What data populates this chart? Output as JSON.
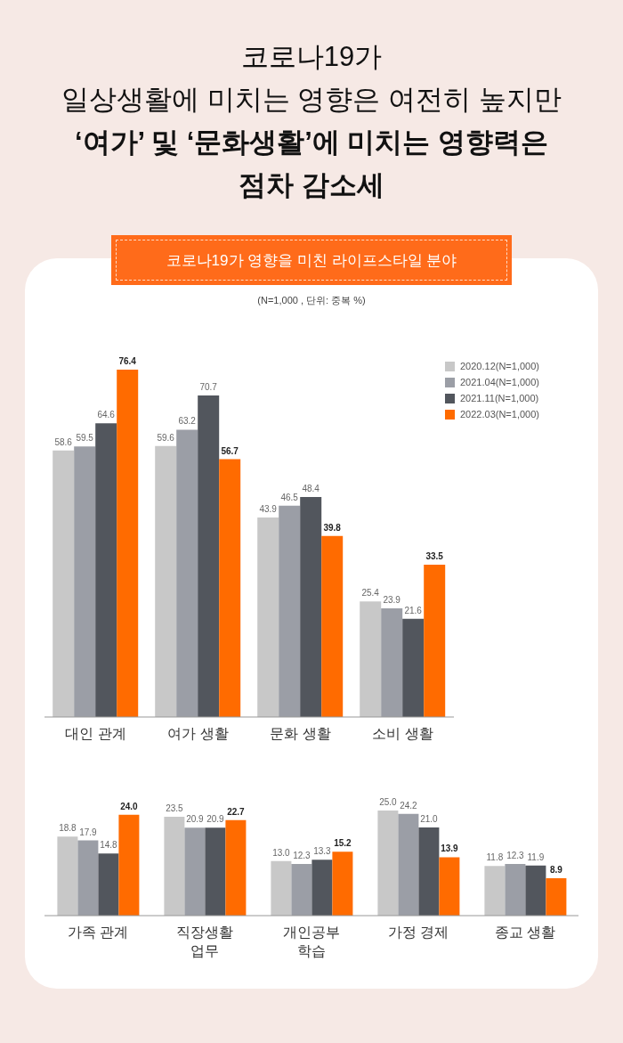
{
  "chart_data": [
    {
      "type": "bar",
      "title": "코로나19가\n일상생활에 미치는 영향은 여전히 높지만\n‘여가’ 및 ‘문화생활’에 미치는 영향력은\n점차 감소세",
      "subtitle": "코로나19가 영향을 미친 라이프스타일 분야",
      "annotations": [
        "(N=1,000 , 단위: 중복 %)"
      ],
      "categories": [
        "대인 관계",
        "여가 생활",
        "문화 생활",
        "소비 생활"
      ],
      "legend": "top right",
      "series": [
        {
          "name": "2020.12(N=1,000)",
          "color": "#c8c8c8",
          "values": [
            58.6,
            59.6,
            43.9,
            25.4
          ],
          "value_labels": [
            "58.6",
            "59.6",
            "43.9",
            "25.4"
          ]
        },
        {
          "name": "2021.04(N=1,000)",
          "color": "#9b9ea6",
          "values": [
            59.5,
            63.2,
            46.5,
            23.9
          ],
          "value_labels": [
            "59.5",
            "63.2",
            "46.5",
            "23.9"
          ]
        },
        {
          "name": "2021.11(N=1,000)",
          "color": "#52565d",
          "values": [
            64.6,
            70.7,
            48.4,
            21.6
          ],
          "value_labels": [
            "64.6",
            "70.7",
            "48.4",
            "21.6"
          ]
        },
        {
          "name": "2022.03(N=1,000)",
          "color": "#ff6b00",
          "values": [
            76.4,
            56.7,
            39.8,
            33.5
          ],
          "value_labels": [
            "76.4",
            "56.7",
            "39.8",
            "33.5"
          ]
        }
      ]
    },
    {
      "type": "bar",
      "categories": [
        "가족 관계",
        "직장생활\n업무",
        "개인공부\n학습",
        "가정 경제",
        "종교 생활"
      ],
      "series": [
        {
          "color": "#c8c8c8",
          "values": [
            18.8,
            23.5,
            13.0,
            25.0,
            11.8
          ],
          "value_labels": [
            "18.8",
            "23.5",
            "13.0",
            "25.0",
            "11.8"
          ]
        },
        {
          "color": "#9b9ea6",
          "values": [
            17.9,
            20.9,
            12.3,
            24.2,
            12.3
          ],
          "value_labels": [
            "17.9",
            "20.9",
            "12.3",
            "24.2",
            "12.3"
          ]
        },
        {
          "color": "#52565d",
          "values": [
            14.8,
            20.9,
            13.3,
            21.0,
            11.9
          ],
          "value_labels": [
            "14.8",
            "20.9",
            "13.3",
            "21.0",
            "11.9"
          ]
        },
        {
          "color": "#ff6b00",
          "values": [
            24.0,
            22.7,
            15.2,
            13.9,
            8.9
          ],
          "value_labels": [
            "24.0",
            "22.7",
            "15.2",
            "13.9",
            "8.9"
          ]
        }
      ]
    }
  ]
}
